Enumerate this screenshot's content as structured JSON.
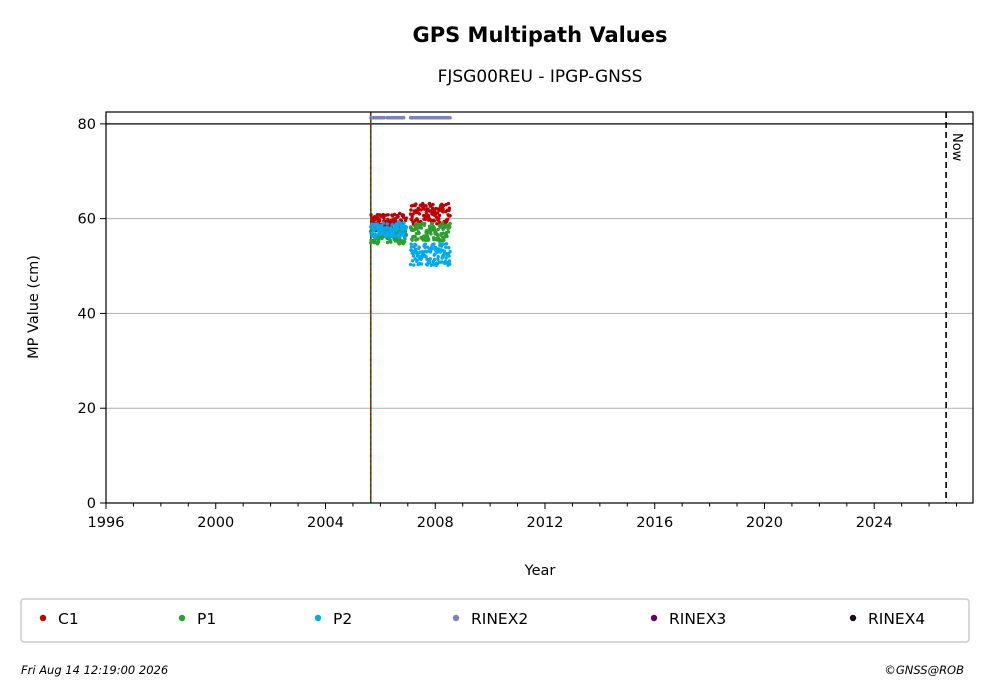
{
  "chart_data": {
    "type": "scatter",
    "title": "GPS Multipath Values",
    "subtitle": "FJSG00REU - IPGP-GNSS",
    "xlabel": "Year",
    "ylabel": "MP Value (cm)",
    "xlim": [
      1996,
      2027.6
    ],
    "ylim": [
      0,
      82.5
    ],
    "x_ticks": [
      1996,
      2000,
      2004,
      2008,
      2012,
      2016,
      2020,
      2024
    ],
    "x_tick_labels": [
      "1996",
      "2000",
      "2004",
      "2008",
      "2012",
      "2016",
      "2020",
      "2024"
    ],
    "y_ticks": [
      0,
      20,
      40,
      60,
      80
    ],
    "y_tick_labels": [
      "0",
      "20",
      "40",
      "60",
      "80"
    ],
    "grid": "horizontal",
    "reference_line_y": 80,
    "event_line_x": 2005.65,
    "now_line_x": 2026.62,
    "now_label": "Now",
    "legend_position": "below",
    "series": [
      {
        "name": "C1",
        "color": "#c00000",
        "segments": [
          {
            "x_start": 2005.65,
            "x_end": 2006.95,
            "y_center": 59.2,
            "y_spread": 1.9
          },
          {
            "x_start": 2007.1,
            "x_end": 2008.55,
            "y_center": 61.0,
            "y_spread": 2.2
          }
        ]
      },
      {
        "name": "P1",
        "color": "#2ca02c",
        "segments": [
          {
            "x_start": 2005.65,
            "x_end": 2006.95,
            "y_center": 56.3,
            "y_spread": 1.6
          },
          {
            "x_start": 2007.1,
            "x_end": 2008.55,
            "y_center": 57.2,
            "y_spread": 1.9
          }
        ]
      },
      {
        "name": "P2",
        "color": "#00aaee",
        "segments": [
          {
            "x_start": 2005.65,
            "x_end": 2006.95,
            "y_center": 57.6,
            "y_spread": 1.7
          },
          {
            "x_start": 2007.1,
            "x_end": 2008.55,
            "y_center": 52.4,
            "y_spread": 2.3
          }
        ]
      },
      {
        "name": "RINEX2",
        "color": "#8080c0",
        "segments": [
          {
            "x_start": 2005.65,
            "x_end": 2006.15,
            "y_center": 81.3,
            "y_spread": 0
          },
          {
            "x_start": 2006.25,
            "x_end": 2006.85,
            "y_center": 81.3,
            "y_spread": 0
          },
          {
            "x_start": 2007.1,
            "x_end": 2008.55,
            "y_center": 81.3,
            "y_spread": 0
          }
        ]
      },
      {
        "name": "RINEX3",
        "color": "#660066",
        "segments": []
      },
      {
        "name": "RINEX4",
        "color": "#1a0a1a",
        "segments": []
      }
    ]
  },
  "footer": {
    "timestamp": "Fri Aug 14 12:19:00 2026",
    "credit": "©GNSS@ROB"
  }
}
